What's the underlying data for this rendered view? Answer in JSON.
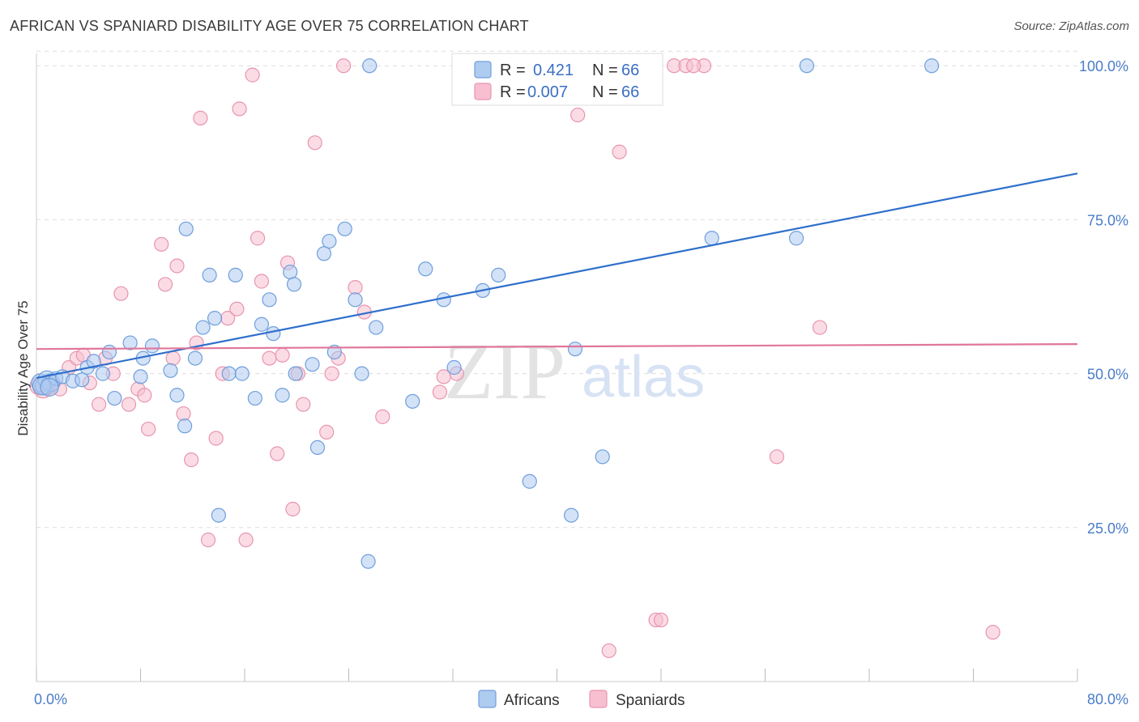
{
  "header": {
    "title": "AFRICAN VS SPANIARD DISABILITY AGE OVER 75 CORRELATION CHART",
    "source": "Source: ZipAtlas.com"
  },
  "watermark": {
    "zip": "ZIP",
    "atlas": "atlas"
  },
  "colors": {
    "africans_fill": "#aecbf0",
    "africans_stroke": "#6f9fdc",
    "africans_line": "#2f6fcc",
    "spaniards_fill": "#f7bfd0",
    "spaniards_stroke": "#e895b0",
    "spaniards_line": "#e0769b",
    "grid": "#dddddd",
    "axis_text": "#4a7cc9"
  },
  "legend": {
    "rows": [
      {
        "r_label": "R =",
        "r_value": "0.421",
        "n_label": "N =",
        "n_value": "66"
      },
      {
        "r_label": "R =",
        "r_value": "0.007",
        "n_label": "N =",
        "n_value": "66"
      }
    ]
  },
  "bottom_legend": {
    "africans": "Africans",
    "spaniards": "Spaniards"
  },
  "chart_data": {
    "type": "scatter",
    "title": "AFRICAN VS SPANIARD DISABILITY AGE OVER 75 CORRELATION CHART",
    "xlabel": "",
    "ylabel": "Disability Age Over 75",
    "xlim": [
      0,
      80
    ],
    "ylim": [
      0,
      102
    ],
    "x_tick_labels": [
      "0.0%",
      "80.0%"
    ],
    "y_ticks": [
      25,
      50,
      75,
      100
    ],
    "y_tick_labels": [
      "25.0%",
      "50.0%",
      "75.0%",
      "100.0%"
    ],
    "grid": true,
    "legend_position": "top-center",
    "series": [
      {
        "name": "Africans",
        "trend": [
          [
            0,
            49.3
          ],
          [
            80,
            82.5
          ]
        ],
        "points": [
          [
            0.3,
            48.5
          ],
          [
            0.6,
            48.0
          ],
          [
            0.8,
            49.0
          ],
          [
            1.1,
            48.5
          ],
          [
            1.5,
            49.2
          ],
          [
            2.0,
            49.5
          ],
          [
            2.8,
            48.8
          ],
          [
            3.5,
            49.0
          ],
          [
            3.9,
            51.0
          ],
          [
            4.4,
            52.0
          ],
          [
            5.1,
            50.0
          ],
          [
            5.6,
            53.5
          ],
          [
            6.0,
            46.0
          ],
          [
            7.2,
            55.0
          ],
          [
            8.0,
            49.5
          ],
          [
            8.2,
            52.5
          ],
          [
            8.9,
            54.5
          ],
          [
            10.3,
            50.5
          ],
          [
            10.8,
            46.5
          ],
          [
            11.4,
            41.5
          ],
          [
            11.5,
            73.5
          ],
          [
            12.2,
            52.5
          ],
          [
            12.8,
            57.5
          ],
          [
            13.3,
            66.0
          ],
          [
            13.7,
            59.0
          ],
          [
            14.0,
            27.0
          ],
          [
            14.8,
            50.0
          ],
          [
            15.3,
            66.0
          ],
          [
            15.8,
            50.0
          ],
          [
            16.8,
            46.0
          ],
          [
            17.3,
            58.0
          ],
          [
            17.9,
            62.0
          ],
          [
            18.2,
            56.5
          ],
          [
            18.9,
            46.5
          ],
          [
            19.5,
            66.5
          ],
          [
            19.8,
            64.5
          ],
          [
            19.9,
            50.0
          ],
          [
            21.2,
            51.5
          ],
          [
            21.6,
            38.0
          ],
          [
            22.1,
            69.5
          ],
          [
            22.5,
            71.5
          ],
          [
            22.9,
            53.5
          ],
          [
            23.7,
            73.5
          ],
          [
            24.5,
            62.0
          ],
          [
            25.0,
            50.0
          ],
          [
            25.5,
            19.5
          ],
          [
            25.6,
            100.0
          ],
          [
            26.1,
            57.5
          ],
          [
            28.9,
            45.5
          ],
          [
            29.9,
            67.0
          ],
          [
            31.3,
            62.0
          ],
          [
            32.1,
            51.0
          ],
          [
            32.8,
            100.0
          ],
          [
            34.3,
            63.5
          ],
          [
            35.5,
            66.0
          ],
          [
            37.9,
            32.5
          ],
          [
            41.1,
            27.0
          ],
          [
            41.4,
            54.0
          ],
          [
            43.5,
            36.5
          ],
          [
            51.9,
            72.0
          ],
          [
            58.4,
            72.0
          ],
          [
            59.2,
            100.0
          ],
          [
            68.8,
            100.0
          ],
          [
            32.5,
            100.0
          ],
          [
            0.4,
            48.0
          ],
          [
            1.0,
            47.8
          ]
        ]
      },
      {
        "name": "Spaniards",
        "trend": [
          [
            0,
            54.0
          ],
          [
            80,
            54.8
          ]
        ],
        "points": [
          [
            0.2,
            48.0
          ],
          [
            0.5,
            47.5
          ],
          [
            0.9,
            48.0
          ],
          [
            1.3,
            48.5
          ],
          [
            1.8,
            47.5
          ],
          [
            2.5,
            51.0
          ],
          [
            3.1,
            52.5
          ],
          [
            3.6,
            53.0
          ],
          [
            4.1,
            48.5
          ],
          [
            4.8,
            45.0
          ],
          [
            5.3,
            52.5
          ],
          [
            5.9,
            50.0
          ],
          [
            6.5,
            63.0
          ],
          [
            7.1,
            45.0
          ],
          [
            7.8,
            47.5
          ],
          [
            8.3,
            46.5
          ],
          [
            8.6,
            41.0
          ],
          [
            9.6,
            71.0
          ],
          [
            9.9,
            64.5
          ],
          [
            10.5,
            52.5
          ],
          [
            10.8,
            67.5
          ],
          [
            11.3,
            43.5
          ],
          [
            11.9,
            36.0
          ],
          [
            12.3,
            55.0
          ],
          [
            12.6,
            91.5
          ],
          [
            13.2,
            23.0
          ],
          [
            13.8,
            39.5
          ],
          [
            14.3,
            50.0
          ],
          [
            14.7,
            59.0
          ],
          [
            15.4,
            60.5
          ],
          [
            15.6,
            93.0
          ],
          [
            16.1,
            23.0
          ],
          [
            16.6,
            98.5
          ],
          [
            17.0,
            72.0
          ],
          [
            17.3,
            65.0
          ],
          [
            17.9,
            52.5
          ],
          [
            18.5,
            37.0
          ],
          [
            18.9,
            53.0
          ],
          [
            19.3,
            68.0
          ],
          [
            19.7,
            28.0
          ],
          [
            20.1,
            50.0
          ],
          [
            20.5,
            45.0
          ],
          [
            21.4,
            87.5
          ],
          [
            22.3,
            40.5
          ],
          [
            22.7,
            50.0
          ],
          [
            23.2,
            52.5
          ],
          [
            23.6,
            100.0
          ],
          [
            24.5,
            64.0
          ],
          [
            25.2,
            60.0
          ],
          [
            26.6,
            43.0
          ],
          [
            31.0,
            47.0
          ],
          [
            31.3,
            49.5
          ],
          [
            32.3,
            50.0
          ],
          [
            38.1,
            100.0
          ],
          [
            41.6,
            92.0
          ],
          [
            44.0,
            5.0
          ],
          [
            44.8,
            86.0
          ],
          [
            47.6,
            10.0
          ],
          [
            48.0,
            10.0
          ],
          [
            49.0,
            100.0
          ],
          [
            49.9,
            100.0
          ],
          [
            51.3,
            100.0
          ],
          [
            50.5,
            100.0
          ],
          [
            56.9,
            36.5
          ],
          [
            60.2,
            57.5
          ],
          [
            73.5,
            8.0
          ]
        ]
      }
    ]
  }
}
